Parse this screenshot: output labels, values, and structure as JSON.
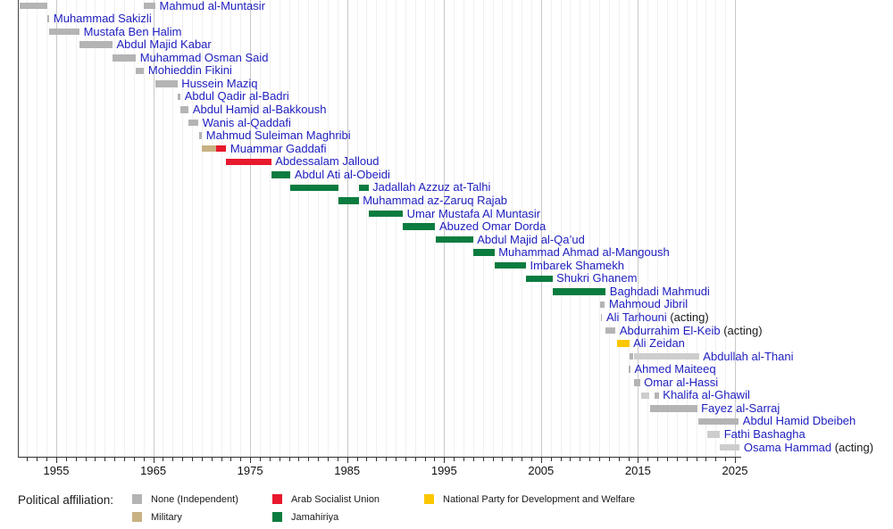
{
  "colors": {
    "grey": "#b4b4b4",
    "lightgrey": "#cdcdcd",
    "tan": "#c8b182",
    "red": "#e8182d",
    "green": "#0b7c3f",
    "yellow": "#fbc700",
    "link_text": "#2020c0",
    "plain_text": "#1a1a1a"
  },
  "legend": {
    "title": "Political affiliation:",
    "items": [
      {
        "label": "None (Independent)",
        "color_key": "grey",
        "col": 0,
        "row": 0
      },
      {
        "label": "Military",
        "color_key": "tan",
        "col": 0,
        "row": 1
      },
      {
        "label": "Arab Socialist Union",
        "color_key": "red",
        "col": 1,
        "row": 0
      },
      {
        "label": "Jamahiriya",
        "color_key": "green",
        "col": 1,
        "row": 1
      },
      {
        "label": "National Party for Development and Welfare",
        "color_key": "yellow",
        "col": 2,
        "row": 0
      }
    ]
  },
  "axis": {
    "decade_tick_years": [
      1955,
      1965,
      1975,
      1985,
      1995,
      2005,
      2015,
      2025
    ],
    "minor_tick_step_years": 1,
    "minor_tick_start_year": 1952,
    "minor_tick_end_year": 2025,
    "range_start_year": 1951,
    "range_end_year": 2025.6,
    "grid": "yearly"
  },
  "chart_data": {
    "type": "timeline",
    "title": "",
    "xlabel": "",
    "legend_position": "bottom",
    "rows": [
      {
        "name": "Mahmud al-Muntasir",
        "suffix": "",
        "segments": [
          {
            "start": 1951.25,
            "end": 1954.12,
            "color": "grey"
          },
          {
            "start": 1964.06,
            "end": 1965.22,
            "color": "grey"
          }
        ]
      },
      {
        "name": "Muhammad Sakizli",
        "suffix": "",
        "segments": [
          {
            "start": 1954.12,
            "end": 1954.3,
            "color": "grey"
          }
        ]
      },
      {
        "name": "Mustafa Ben Halim",
        "suffix": "",
        "segments": [
          {
            "start": 1954.3,
            "end": 1957.4,
            "color": "grey"
          }
        ]
      },
      {
        "name": "Abdul Majid Kabar",
        "suffix": "",
        "segments": [
          {
            "start": 1957.4,
            "end": 1960.8,
            "color": "grey"
          }
        ]
      },
      {
        "name": "Muhammad Osman Said",
        "suffix": "",
        "segments": [
          {
            "start": 1960.8,
            "end": 1963.22,
            "color": "grey"
          }
        ]
      },
      {
        "name": "Mohieddin Fikini",
        "suffix": "",
        "segments": [
          {
            "start": 1963.22,
            "end": 1964.06,
            "color": "grey"
          }
        ]
      },
      {
        "name": "Hussein Maziq",
        "suffix": "",
        "segments": [
          {
            "start": 1965.22,
            "end": 1967.5,
            "color": "grey"
          }
        ]
      },
      {
        "name": "Abdul Qadir al-Badri",
        "suffix": "",
        "segments": [
          {
            "start": 1967.5,
            "end": 1967.82,
            "color": "grey"
          }
        ]
      },
      {
        "name": "Abdul Hamid al-Bakkoush",
        "suffix": "",
        "segments": [
          {
            "start": 1967.82,
            "end": 1968.67,
            "color": "grey"
          }
        ]
      },
      {
        "name": "Wanis al-Qaddafi",
        "suffix": "",
        "segments": [
          {
            "start": 1968.67,
            "end": 1969.66,
            "color": "grey"
          }
        ]
      },
      {
        "name": "Mahmud Suleiman Maghribi",
        "suffix": "",
        "segments": [
          {
            "start": 1969.69,
            "end": 1970.04,
            "color": "grey"
          }
        ]
      },
      {
        "name": "Muammar Gaddafi",
        "suffix": "",
        "segments": [
          {
            "start": 1970.04,
            "end": 1971.45,
            "color": "tan"
          },
          {
            "start": 1971.45,
            "end": 1972.54,
            "color": "red"
          }
        ]
      },
      {
        "name": "Abdessalam Jalloud",
        "suffix": "",
        "segments": [
          {
            "start": 1972.54,
            "end": 1977.17,
            "color": "red"
          }
        ]
      },
      {
        "name": "Abdul Ati al-Obeidi",
        "suffix": "",
        "segments": [
          {
            "start": 1977.17,
            "end": 1979.17,
            "color": "green"
          }
        ]
      },
      {
        "name": "Jadallah Azzuz at-Talhi",
        "suffix": "",
        "segments": [
          {
            "start": 1979.17,
            "end": 1984.1,
            "color": "green"
          },
          {
            "start": 1986.2,
            "end": 1987.2,
            "color": "green"
          }
        ]
      },
      {
        "name": "Muhammad az-Zaruq Rajab",
        "suffix": "",
        "segments": [
          {
            "start": 1984.1,
            "end": 1986.2,
            "color": "green"
          }
        ]
      },
      {
        "name": "Umar Mustafa Al Muntasir",
        "suffix": "",
        "segments": [
          {
            "start": 1987.2,
            "end": 1990.75,
            "color": "green"
          }
        ]
      },
      {
        "name": "Abuzed Omar Dorda",
        "suffix": "",
        "segments": [
          {
            "start": 1990.75,
            "end": 1994.1,
            "color": "green"
          }
        ]
      },
      {
        "name": "Abdul Majid al-Qa’ud",
        "suffix": "",
        "segments": [
          {
            "start": 1994.1,
            "end": 1997.99,
            "color": "green"
          }
        ]
      },
      {
        "name": "Muhammad Ahmad al-Mangoush",
        "suffix": "",
        "segments": [
          {
            "start": 1997.99,
            "end": 2000.2,
            "color": "green"
          }
        ]
      },
      {
        "name": "Imbarek Shamekh",
        "suffix": "",
        "segments": [
          {
            "start": 2000.2,
            "end": 2003.45,
            "color": "green"
          }
        ]
      },
      {
        "name": "Shukri Ghanem",
        "suffix": "",
        "segments": [
          {
            "start": 2003.45,
            "end": 2006.17,
            "color": "green"
          }
        ]
      },
      {
        "name": "Baghdadi Mahmudi",
        "suffix": "",
        "segments": [
          {
            "start": 2006.17,
            "end": 2011.67,
            "color": "green"
          }
        ]
      },
      {
        "name": "Mahmoud Jibril",
        "suffix": "",
        "segments": [
          {
            "start": 2011.1,
            "end": 2011.6,
            "color": "grey"
          }
        ]
      },
      {
        "name": "Ali Tarhouni",
        "suffix": "(acting)",
        "segments": [
          {
            "start": 2011.15,
            "end": 2011.32,
            "color": "grey"
          }
        ]
      },
      {
        "name": "Abdurrahim El-Keib",
        "suffix": "(acting)",
        "segments": [
          {
            "start": 2011.6,
            "end": 2012.7,
            "color": "grey"
          }
        ]
      },
      {
        "name": "Ali Zeidan",
        "suffix": "",
        "segments": [
          {
            "start": 2012.8,
            "end": 2014.1,
            "color": "yellow"
          }
        ]
      },
      {
        "name": "Abdullah al-Thani",
        "suffix": "",
        "segments": [
          {
            "start": 2014.1,
            "end": 2014.55,
            "color": "grey"
          },
          {
            "start": 2014.55,
            "end": 2021.3,
            "color": "lightgrey"
          }
        ]
      },
      {
        "name": "Ahmed Maiteeq",
        "suffix": "",
        "segments": [
          {
            "start": 2014.05,
            "end": 2014.22,
            "color": "grey"
          }
        ]
      },
      {
        "name": "Omar al-Hassi",
        "suffix": "",
        "segments": [
          {
            "start": 2014.6,
            "end": 2015.2,
            "color": "grey"
          }
        ]
      },
      {
        "name": "Khalifa al-Ghawil",
        "suffix": "",
        "segments": [
          {
            "start": 2015.3,
            "end": 2016.2,
            "color": "lightgrey"
          },
          {
            "start": 2016.7,
            "end": 2017.15,
            "color": "grey"
          }
        ]
      },
      {
        "name": "Fayez al-Sarraj",
        "suffix": "",
        "segments": [
          {
            "start": 2016.27,
            "end": 2021.1,
            "color": "grey"
          }
        ]
      },
      {
        "name": "Abdul Hamid Dbeibeh",
        "suffix": "",
        "segments": [
          {
            "start": 2021.2,
            "end": 2025.4,
            "color": "grey"
          }
        ]
      },
      {
        "name": "Fathi Bashagha",
        "suffix": "",
        "segments": [
          {
            "start": 2022.15,
            "end": 2023.45,
            "color": "lightgrey"
          }
        ]
      },
      {
        "name": "Osama Hammad",
        "suffix": "(acting)",
        "segments": [
          {
            "start": 2023.45,
            "end": 2025.5,
            "color": "lightgrey"
          }
        ]
      }
    ]
  }
}
